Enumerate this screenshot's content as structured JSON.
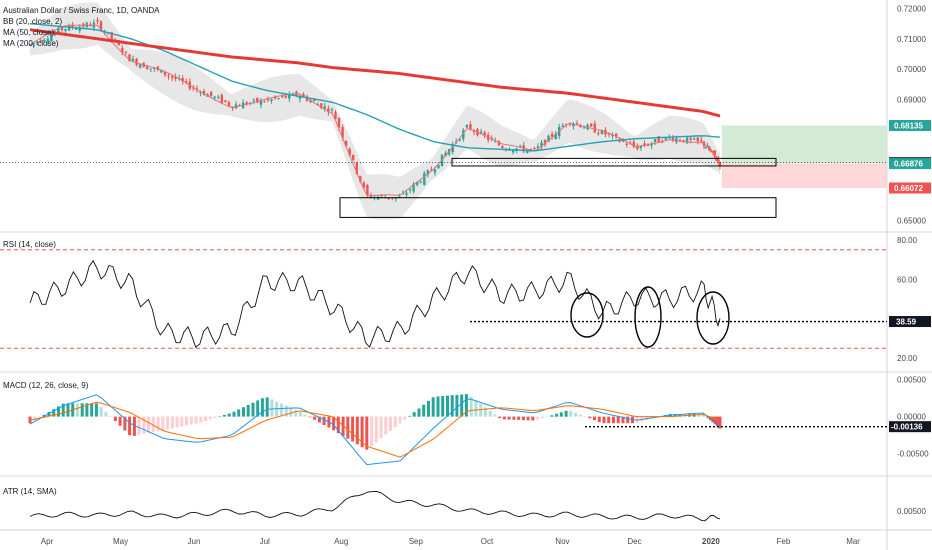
{
  "colors": {
    "up": "#26a69a",
    "down": "#ef5350",
    "ma200": "#e53935",
    "ma50": "#26a0b4",
    "bb": "#e57373",
    "band": "#d3d3d3",
    "rsi": "#111111",
    "dashed": "#ef5350",
    "macd": "#2196f3",
    "signal": "#ff6d00",
    "histUp": "#26a69a",
    "histDown": "#ef5350",
    "histUpLight": "#b2dfdb",
    "histDownLight": "#ffcdd2",
    "profit": "#c8e6c9",
    "loss": "#ffcdd2",
    "axisBg": "#ffffff",
    "tagPrice": "#131722",
    "tagProfit": "#26a69a",
    "tagLoss": "#ef5350"
  },
  "legend": {
    "main_title": "Australian Dollar / Swiss Franc, 1D, OANDA",
    "bb": "BB (20, close, 2)",
    "ma50": "MA (50, close)",
    "ma200": "MA (200, close)",
    "rsi": "RSI (14, close)",
    "macd": "MACD (12, 26, close, 9)",
    "atr": "ATR (14, SMA)"
  },
  "x_axis_labels": [
    "Apr",
    "May",
    "Jun",
    "Jul",
    "Aug",
    "Sep",
    "Oct",
    "Nov",
    "Dec",
    "2020",
    "Feb",
    "Mar"
  ],
  "price_axis": [
    "0.72000",
    "0.71000",
    "0.70000",
    "0.69000",
    "0.65000"
  ],
  "price_tags": {
    "profit": "0.68135",
    "current": "0.66906",
    "entry": "0.66876",
    "stop": "0.66072"
  },
  "rsi_axis": [
    "80.00",
    "60.00",
    "20.00"
  ],
  "rsi_tag": "38.59",
  "macd_axis": [
    "0.00500",
    "0.00000",
    "-0.00500"
  ],
  "macd_tag": "-0.00136",
  "atr_axis": [
    "0.00500"
  ],
  "chart_data": [
    {
      "type": "candlestick",
      "title": "Australian Dollar / Swiss Franc, 1D, OANDA",
      "x": [
        "2019-03-25",
        "2019-04-08",
        "2019-04-22",
        "2019-05-06",
        "2019-05-20",
        "2019-06-03",
        "2019-06-17",
        "2019-07-01",
        "2019-07-15",
        "2019-07-29",
        "2019-08-12",
        "2019-08-26",
        "2019-09-09",
        "2019-09-23",
        "2019-10-07",
        "2019-10-21",
        "2019-11-04",
        "2019-11-18",
        "2019-12-02",
        "2019-12-16",
        "2019-12-30",
        "2020-01-06"
      ],
      "series": [
        {
          "name": "close",
          "values": [
            0.708,
            0.7135,
            0.715,
            0.703,
            0.6985,
            0.693,
            0.688,
            0.6895,
            0.6915,
            0.686,
            0.658,
            0.6575,
            0.6675,
            0.681,
            0.6745,
            0.673,
            0.683,
            0.679,
            0.674,
            0.6775,
            0.6755,
            0.6688
          ]
        },
        {
          "name": "MA (200, close)",
          "values": [
            0.713,
            0.7115,
            0.71,
            0.7085,
            0.707,
            0.7055,
            0.704,
            0.703,
            0.702,
            0.7005,
            0.6995,
            0.6985,
            0.697,
            0.6955,
            0.694,
            0.693,
            0.692,
            0.6905,
            0.689,
            0.6875,
            0.686,
            0.6845
          ]
        },
        {
          "name": "MA (50, close)",
          "values": [
            0.715,
            0.714,
            0.713,
            0.71,
            0.706,
            0.701,
            0.696,
            0.693,
            0.691,
            0.689,
            0.685,
            0.68,
            0.676,
            0.674,
            0.6735,
            0.673,
            0.6745,
            0.676,
            0.677,
            0.6775,
            0.678,
            0.6775
          ]
        }
      ],
      "annotations": {
        "boxes": [
          "0.6680-0.6705",
          "0.6510-0.6575"
        ],
        "profit_target": 0.68135,
        "entry": 0.66876,
        "stop": 0.66072
      }
    },
    {
      "type": "line",
      "title": "RSI (14, close)",
      "x": [
        "2019-03-25",
        "2019-04-08",
        "2019-04-22",
        "2019-05-06",
        "2019-05-20",
        "2019-06-03",
        "2019-06-17",
        "2019-07-01",
        "2019-07-15",
        "2019-07-29",
        "2019-08-12",
        "2019-08-26",
        "2019-09-09",
        "2019-09-23",
        "2019-10-07",
        "2019-10-21",
        "2019-11-04",
        "2019-11-18",
        "2019-12-02",
        "2019-12-16",
        "2019-12-30",
        "2020-01-06"
      ],
      "series": [
        {
          "name": "RSI",
          "values": [
            48,
            56,
            66,
            58,
            33,
            30,
            34,
            59,
            58,
            46,
            30,
            34,
            50,
            64,
            52,
            54,
            60,
            43,
            51,
            50,
            55,
            39
          ]
        }
      ],
      "levels": [
        75,
        25
      ],
      "ylim": [
        15,
        82
      ]
    },
    {
      "type": "line",
      "title": "MACD (12, 26, close, 9)",
      "x": [
        "2019-03-25",
        "2019-04-08",
        "2019-04-22",
        "2019-05-06",
        "2019-05-20",
        "2019-06-03",
        "2019-06-17",
        "2019-07-01",
        "2019-07-15",
        "2019-07-29",
        "2019-08-12",
        "2019-08-26",
        "2019-09-09",
        "2019-09-23",
        "2019-10-07",
        "2019-10-21",
        "2019-11-04",
        "2019-11-18",
        "2019-12-02",
        "2019-12-16",
        "2019-12-30",
        "2020-01-06"
      ],
      "series": [
        {
          "name": "MACD",
          "values": [
            -0.001,
            0.0015,
            0.003,
            -0.001,
            -0.003,
            -0.0035,
            -0.0025,
            0.001,
            0.0012,
            -0.001,
            -0.0065,
            -0.006,
            -0.0015,
            0.0025,
            0.001,
            0.0005,
            0.002,
            0.0005,
            -0.0005,
            0.0002,
            0.0005,
            -0.0014
          ]
        },
        {
          "name": "Signal",
          "values": [
            -0.0005,
            0.0005,
            0.002,
            0.0005,
            -0.002,
            -0.003,
            -0.0028,
            -0.0005,
            0.0008,
            0.0,
            -0.004,
            -0.0055,
            -0.003,
            0.0008,
            0.0012,
            0.0008,
            0.0015,
            0.001,
            0.0,
            0.0,
            0.0003,
            -0.0005
          ]
        }
      ],
      "ylim": [
        -0.0075,
        0.0055
      ]
    },
    {
      "type": "line",
      "title": "ATR (14, SMA)",
      "x": [
        "2019-03-25",
        "2019-04-08",
        "2019-04-22",
        "2019-05-06",
        "2019-05-20",
        "2019-06-03",
        "2019-06-17",
        "2019-07-01",
        "2019-07-15",
        "2019-07-29",
        "2019-08-12",
        "2019-08-26",
        "2019-09-09",
        "2019-09-23",
        "2019-10-07",
        "2019-10-21",
        "2019-11-04",
        "2019-11-18",
        "2019-12-02",
        "2019-12-16",
        "2019-12-30",
        "2020-01-06"
      ],
      "series": [
        {
          "name": "ATR",
          "values": [
            0.0045,
            0.0047,
            0.0046,
            0.0048,
            0.0045,
            0.0047,
            0.005,
            0.0046,
            0.0047,
            0.0052,
            0.0068,
            0.0058,
            0.0055,
            0.005,
            0.0048,
            0.0046,
            0.0047,
            0.0045,
            0.0044,
            0.0046,
            0.0043,
            0.0045
          ]
        }
      ],
      "ylim": [
        0.0035,
        0.0075
      ]
    }
  ]
}
